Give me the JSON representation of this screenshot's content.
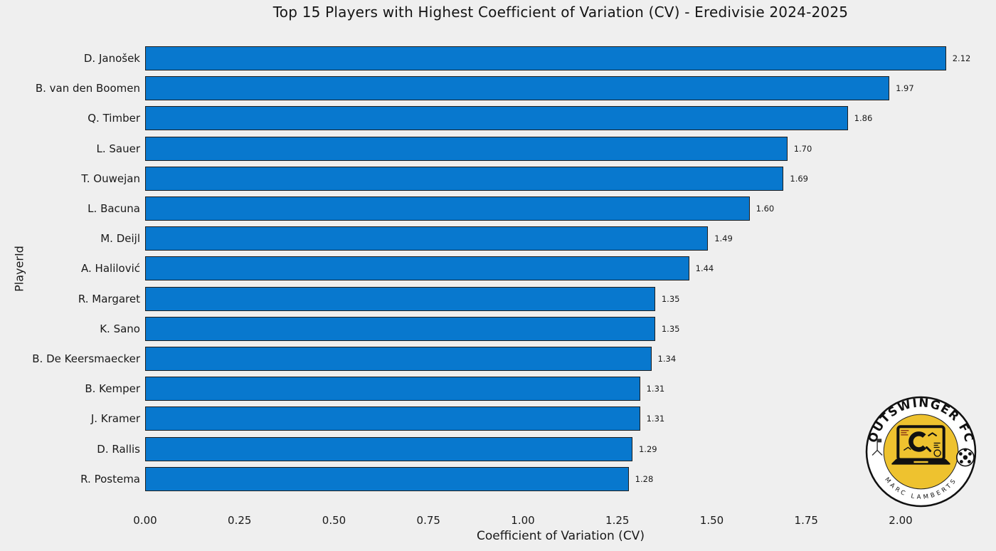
{
  "title": "Top 15 Players with Highest Coefficient of Variation (CV) - Eredivisie 2024-2025",
  "chart_data": {
    "type": "bar",
    "orientation": "horizontal",
    "title": "Top 15 Players with Highest Coefficient of Variation (CV) - Eredivisie 2024-2025",
    "categories": [
      "D. Janošek",
      "B. van den Boomen",
      "Q. Timber",
      "L. Sauer",
      "T. Ouwejan",
      "L. Bacuna",
      "M. Deijl",
      "A. Halilović",
      "R. Margaret",
      "K. Sano",
      "B. De Keersmaecker",
      "B. Kemper",
      "J. Kramer",
      "D. Rallis",
      "R. Postema"
    ],
    "values": [
      2.12,
      1.97,
      1.86,
      1.7,
      1.69,
      1.6,
      1.49,
      1.44,
      1.35,
      1.35,
      1.34,
      1.31,
      1.31,
      1.29,
      1.28
    ],
    "xlabel": "Coefficient of Variation (CV)",
    "ylabel": "PlayerId",
    "xlim": [
      0,
      2.2
    ],
    "xticks": [
      "0.00",
      "0.25",
      "0.50",
      "0.75",
      "1.00",
      "1.25",
      "1.50",
      "1.75",
      "2.00"
    ],
    "grid": false,
    "legend": null,
    "colors": {
      "background": "#efefef",
      "bar_fill": "#0878ce",
      "bar_edge": "#1f1f1f",
      "text": "#191919"
    }
  },
  "logo": {
    "top_text": "OUTSWINGER FC",
    "bottom_text": "MARC LAMBERTS",
    "badge_yellow": "#eec22f",
    "badge_ring": "#ffffff",
    "badge_outline": "#111111"
  }
}
